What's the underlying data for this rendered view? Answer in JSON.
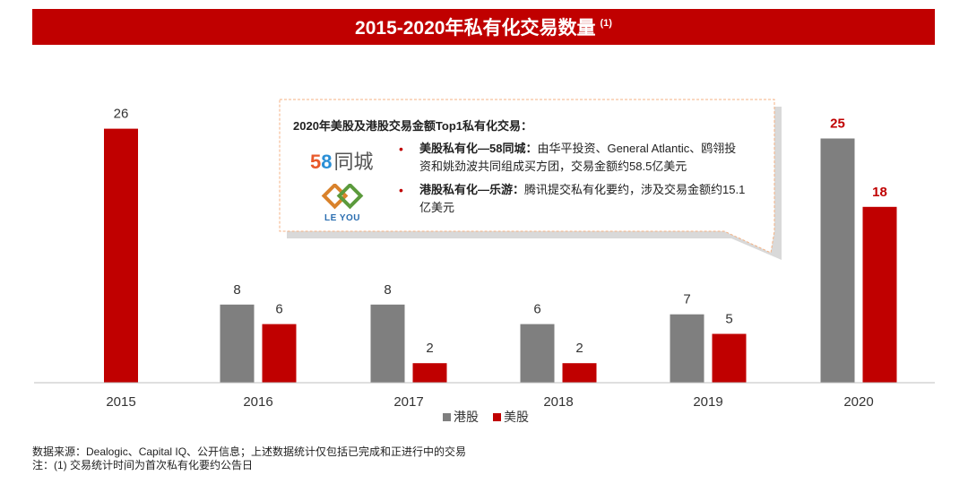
{
  "title": {
    "main": "2015-2020年私有化交易数量",
    "note_marker": "(1)"
  },
  "chart_data": {
    "type": "bar",
    "categories": [
      "2015",
      "2016",
      "2017",
      "2018",
      "2019",
      "2020"
    ],
    "series": [
      {
        "name": "港股",
        "color": "#7f7f7f",
        "values": [
          null,
          8,
          8,
          6,
          7,
          25
        ]
      },
      {
        "name": "美股",
        "color": "#c00000",
        "values": [
          26,
          6,
          2,
          2,
          5,
          18
        ]
      }
    ],
    "data_labels": [
      [
        "",
        "8",
        "8",
        "6",
        "7",
        "25"
      ],
      [
        "26",
        "6",
        "2",
        "2",
        "5",
        "18"
      ]
    ],
    "highlight_category": "2020",
    "highlight_label_color": "#c00000",
    "ylim": [
      0,
      28
    ],
    "grid": false,
    "legend_position": "bottom-center"
  },
  "callout": {
    "heading": "2020年美股及港股交易金额Top1私有化交易：",
    "bullet_symbol": "•",
    "items": [
      {
        "logo": "58-tongcheng-logo",
        "logo_parts": [
          "5",
          "8",
          "同城"
        ],
        "bold": "美股私有化—58同城：",
        "line1": "由华平投资、General Atlantic、鸥翎投",
        "line2": "资和姚劲波共同组成买方团，交易金额约58.5亿美元"
      },
      {
        "logo": "le-you-logo",
        "logo_text": "LE YOU",
        "bold": "港股私有化—乐游：",
        "line1": "腾讯提交私有化要约，涉及交易金额约15.1",
        "line2": "亿美元"
      }
    ]
  },
  "footnotes": {
    "source": "数据来源：Dealogic、Capital IQ、公开信息；上述数据统计仅包括已完成和正进行中的交易",
    "note": "注：(1) 交易统计时间为首次私有化要约公告日"
  }
}
